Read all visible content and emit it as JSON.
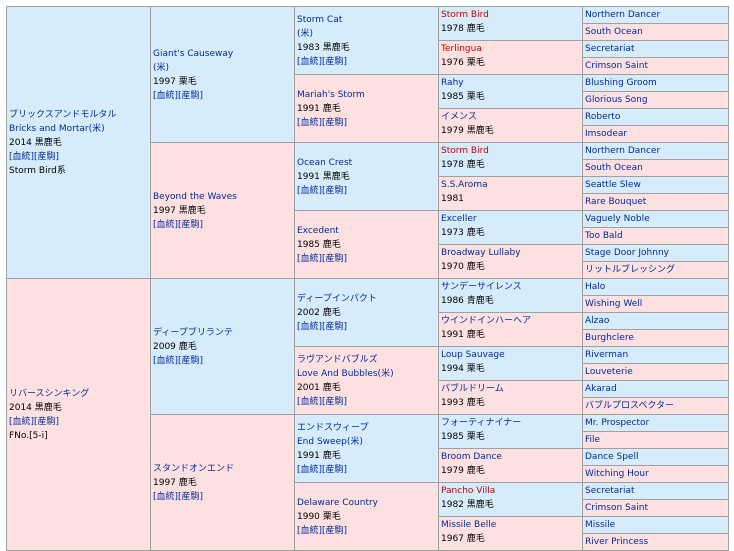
{
  "sire": {
    "name_ja": "ブリックスアンドモルタル",
    "name_en": "Bricks and Mortar(米)",
    "info": "2014 黒鹿毛",
    "tags": "[血統][産駒]",
    "line": "Storm Bird系"
  },
  "dam": {
    "name_ja": "リバースシンキング",
    "info": "2014 黒鹿毛",
    "tags": "[血統][産駒]",
    "family": "FNo.[5-i]"
  },
  "ss": {
    "name": "Giant's Causeway",
    "origin": "(米)",
    "info": "1997 栗毛",
    "tags": "[血統][産駒]"
  },
  "sd": {
    "name": "Beyond the Waves",
    "info": "1997 黒鹿毛",
    "tags": "[血統][産駒]"
  },
  "ds": {
    "name": "ディープブリランテ",
    "info": "2009 鹿毛",
    "tags": "[血統][産駒]"
  },
  "dd": {
    "name": "スタンドオンエンド",
    "info": "1997 鹿毛",
    "tags": "[血統][産駒]"
  },
  "sss": {
    "name": "Storm Cat",
    "origin": "(米)",
    "info": "1983 黒鹿毛",
    "tags": "[血統][産駒]"
  },
  "ssd": {
    "name": "Mariah's Storm",
    "info": "1991 鹿毛",
    "tags": "[血統][産駒]"
  },
  "sds": {
    "name": "Ocean Crest",
    "info": "1991 黒鹿毛",
    "tags": "[血統][産駒]"
  },
  "sdd": {
    "name": "Excedent",
    "info": "1985 鹿毛",
    "tags": "[血統][産駒]"
  },
  "dss": {
    "name": "ディープインパクト",
    "info": "2002 鹿毛",
    "tags": "[血統][産駒]"
  },
  "dsd": {
    "name": "ラヴアンドバブルズ",
    "name2": "Love And Bubbles(米)",
    "info": "2001 鹿毛",
    "tags": "[血統][産駒]"
  },
  "dds": {
    "name": "エンドスウィープ",
    "name2": "End Sweep(米)",
    "info": "1991 鹿毛",
    "tags": "[血統][産駒]"
  },
  "ddd": {
    "name": "Delaware Country",
    "info": "1990 栗毛",
    "tags": "[血統][産駒]"
  },
  "g4": [
    {
      "name": "Storm Bird",
      "info": "1978 鹿毛"
    },
    {
      "name": "Terlingua",
      "info": "1976 栗毛"
    },
    {
      "name": "Rahy",
      "info": "1985 栗毛"
    },
    {
      "name": "イメンス",
      "info": "1979 黒鹿毛"
    },
    {
      "name": "Storm Bird",
      "info": "1978 鹿毛"
    },
    {
      "name": "S.S.Aroma",
      "info": "1981"
    },
    {
      "name": "Exceller",
      "info": "1973 鹿毛"
    },
    {
      "name": "Broadway Lullaby",
      "info": "1970 鹿毛"
    },
    {
      "name": "サンデーサイレンス",
      "info": "1986 青鹿毛"
    },
    {
      "name": "ウインドインハーヘア",
      "info": "1991 鹿毛"
    },
    {
      "name": "Loup Sauvage",
      "info": "1994 栗毛"
    },
    {
      "name": "バブルドリーム",
      "info": "1993 鹿毛"
    },
    {
      "name": "フォーティナイナー",
      "info": "1985 栗毛"
    },
    {
      "name": "Broom Dance",
      "info": "1979 鹿毛"
    },
    {
      "name": "Pancho Villa",
      "info": "1982 黒鹿毛"
    },
    {
      "name": "Missile Belle",
      "info": "1967 鹿毛"
    }
  ],
  "g5": [
    "Northern Dancer",
    "South Ocean",
    "Secretariat",
    "Crimson Saint",
    "Blushing Groom",
    "Glorious Song",
    "Roberto",
    "Imsodear",
    "Northern Dancer",
    "South Ocean",
    "Seattle Slew",
    "Rare Bouquet",
    "Vaguely Noble",
    "Too Bald",
    "Stage Door Johnny",
    "リットルブレッシング",
    "Halo",
    "Wishing Well",
    "Alzao",
    "Burghclere",
    "Riverman",
    "Louveterie",
    "Akarad",
    "バブルプロスペクター",
    "Mr. Prospector",
    "File",
    "Dance Spell",
    "Witching Hour",
    "Secretariat",
    "Crimson Saint",
    "Missile",
    "River Princess"
  ]
}
